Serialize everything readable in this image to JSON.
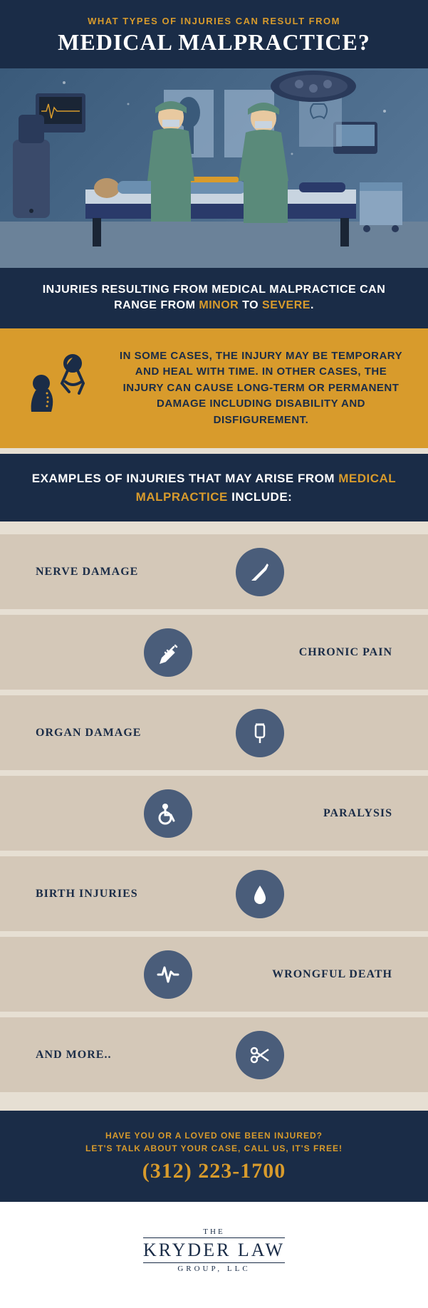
{
  "colors": {
    "navy": "#1a2c47",
    "gold": "#d89b2c",
    "white": "#ffffff",
    "tan_light": "#e6dfd3",
    "tan_dark": "#d4c8b8",
    "icon_circle": "#4a5d7a"
  },
  "header": {
    "pretitle": "WHAT TYPES OF INJURIES CAN RESULT FROM",
    "title": "MEDICAL MALPRACTICE?"
  },
  "range_bar": {
    "prefix": "INJURIES RESULTING FROM MEDICAL MALPRACTICE CAN RANGE FROM ",
    "word1": "MINOR",
    "mid": " TO ",
    "word2": "SEVERE",
    "suffix": "."
  },
  "yellow_block": {
    "text": "IN SOME CASES, THE INJURY MAY BE TEMPORARY AND HEAL WITH TIME. IN OTHER CASES, THE INJURY CAN CAUSE LONG-TERM OR PERMANENT DAMAGE INCLUDING DISABILITY AND DISFIGUREMENT."
  },
  "examples_header": {
    "prefix": "EXAMPLES OF INJURIES THAT MAY ARISE FROM ",
    "hl": "MEDICAL MALPRACTICE",
    "suffix": " INCLUDE:"
  },
  "injuries": [
    {
      "label": "NERVE DAMAGE",
      "side": "left",
      "icon": "scalpel"
    },
    {
      "label": "CHRONIC PAIN",
      "side": "right",
      "icon": "syringe"
    },
    {
      "label": "ORGAN DAMAGE",
      "side": "left",
      "icon": "ivbag"
    },
    {
      "label": "PARALYSIS",
      "side": "right",
      "icon": "wheelchair"
    },
    {
      "label": "BIRTH INJURIES",
      "side": "left",
      "icon": "drop"
    },
    {
      "label": "WRONGFUL DEATH",
      "side": "right",
      "icon": "pulse"
    },
    {
      "label": "AND MORE..",
      "side": "left",
      "icon": "scissors"
    }
  ],
  "cta": {
    "line1": "HAVE YOU OR A LOVED ONE BEEN INJURED?",
    "line2": "LET'S TALK ABOUT YOUR CASE, CALL US, IT'S FREE!",
    "phone": "(312) 223-1700"
  },
  "footer": {
    "the": "THE",
    "main": "KRYDER LAW",
    "sub": "GROUP, LLC"
  }
}
